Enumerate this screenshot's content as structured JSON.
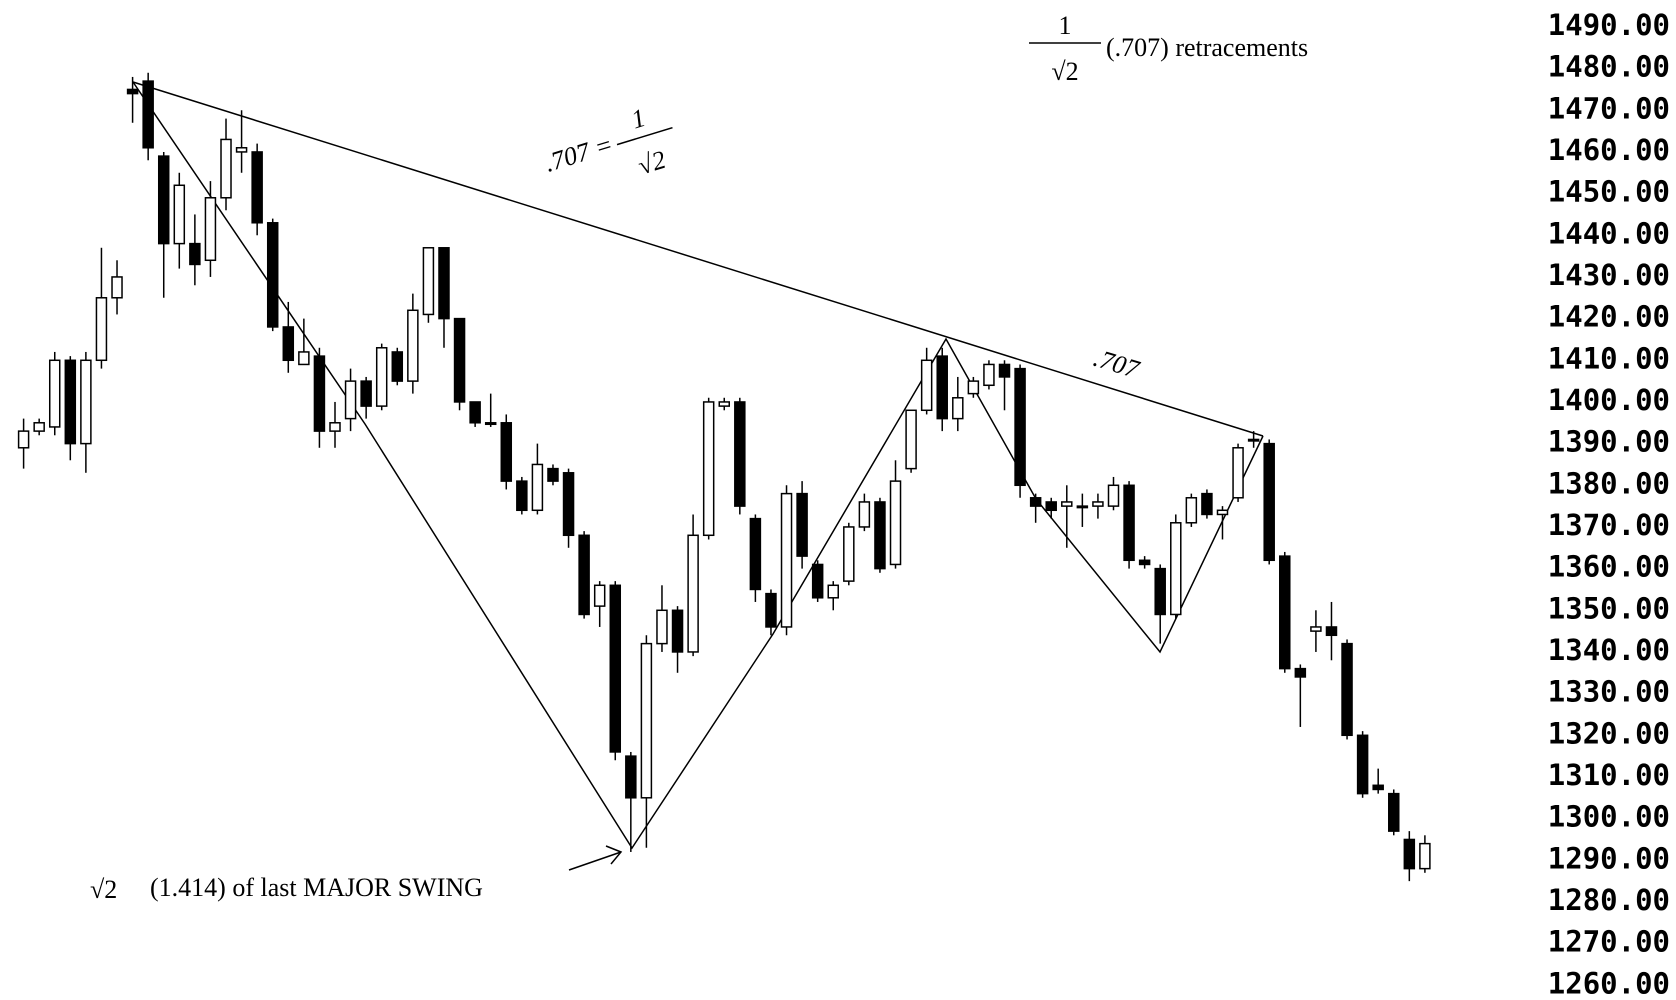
{
  "chart_data": {
    "type": "candlestick",
    "open": [
      1389,
      1393,
      1394,
      1410,
      1390,
      1410,
      1425,
      1475,
      1477,
      1459,
      1438,
      1438,
      1434,
      1449,
      1460,
      1460,
      1443,
      1418,
      1409,
      1411,
      1393,
      1396,
      1405,
      1399,
      1412,
      1405,
      1421,
      1437,
      1420,
      1400,
      1395,
      1395,
      1381,
      1374,
      1384,
      1383,
      1368,
      1351,
      1356,
      1315,
      1305,
      1342,
      1350,
      1340,
      1368,
      1399,
      1400,
      1372,
      1354,
      1346,
      1378,
      1361,
      1353,
      1357,
      1370,
      1376,
      1361,
      1384,
      1398,
      1411,
      1396,
      1402,
      1404,
      1409,
      1408,
      1377,
      1376,
      1375,
      1375,
      1375,
      1375,
      1380,
      1362,
      1360,
      1349,
      1371,
      1378,
      1373,
      1377,
      1391,
      1390,
      1363,
      1336,
      1345,
      1346,
      1342,
      1320,
      1308,
      1306,
      1295,
      1288
    ],
    "high": [
      1396,
      1396,
      1412,
      1411,
      1412,
      1437,
      1434,
      1478,
      1479,
      1460,
      1455,
      1445,
      1453,
      1468,
      1470,
      1462,
      1444,
      1424,
      1420,
      1413,
      1400,
      1408,
      1406,
      1414,
      1413,
      1426,
      1437,
      1437,
      1420,
      1400,
      1402,
      1397,
      1382,
      1390,
      1385,
      1384,
      1369,
      1357,
      1357,
      1316,
      1344,
      1356,
      1351,
      1373,
      1401,
      1401,
      1401,
      1373,
      1355,
      1380,
      1381,
      1362,
      1357,
      1371,
      1378,
      1377,
      1386,
      1398,
      1413,
      1413,
      1406,
      1406,
      1410,
      1410,
      1409,
      1378,
      1377,
      1380,
      1378,
      1378,
      1382,
      1381,
      1363,
      1361,
      1373,
      1378,
      1379,
      1375,
      1390,
      1393,
      1391,
      1364,
      1337,
      1350,
      1352,
      1343,
      1321,
      1312,
      1307,
      1297,
      1296
    ],
    "low": [
      1384,
      1392,
      1392,
      1386,
      1383,
      1408,
      1421,
      1467,
      1458,
      1425,
      1432,
      1428,
      1430,
      1446,
      1455,
      1440,
      1417,
      1407,
      1409,
      1389,
      1389,
      1393,
      1396,
      1398,
      1404,
      1402,
      1419,
      1413,
      1398,
      1394,
      1394,
      1379,
      1373,
      1373,
      1380,
      1365,
      1348,
      1346,
      1314,
      1292,
      1293,
      1340,
      1335,
      1339,
      1367,
      1398,
      1373,
      1352,
      1344,
      1344,
      1360,
      1352,
      1350,
      1356,
      1369,
      1359,
      1360,
      1383,
      1397,
      1393,
      1393,
      1401,
      1403,
      1398,
      1377,
      1371,
      1372,
      1365,
      1370,
      1372,
      1374,
      1360,
      1360,
      1342,
      1348,
      1370,
      1372,
      1367,
      1376,
      1389,
      1361,
      1335,
      1322,
      1340,
      1338,
      1319,
      1305,
      1306,
      1296,
      1285,
      1287
    ],
    "close": [
      1393,
      1395,
      1410,
      1390,
      1410,
      1425,
      1430,
      1474,
      1461,
      1438,
      1452,
      1433,
      1449,
      1463,
      1461,
      1443,
      1418,
      1410,
      1412,
      1393,
      1395,
      1405,
      1399,
      1413,
      1405,
      1422,
      1437,
      1420,
      1400,
      1395,
      1395,
      1381,
      1374,
      1385,
      1381,
      1368,
      1349,
      1356,
      1316,
      1305,
      1342,
      1350,
      1340,
      1368,
      1400,
      1400,
      1375,
      1355,
      1346,
      1378,
      1363,
      1353,
      1356,
      1370,
      1376,
      1360,
      1381,
      1398,
      1410,
      1396,
      1401,
      1405,
      1409,
      1406,
      1380,
      1375,
      1374,
      1376,
      1375,
      1376,
      1380,
      1362,
      1361,
      1349,
      1371,
      1377,
      1373,
      1374,
      1389,
      1391,
      1362,
      1336,
      1334,
      1346,
      1344,
      1320,
      1306,
      1307,
      1297,
      1288,
      1294
    ],
    "up_color": "#ffffff",
    "down_color": "#000000",
    "ylim": [
      1257,
      1492
    ],
    "yticks": [
      {
        "value": 1490,
        "label": "1490.00"
      },
      {
        "value": 1480,
        "label": "1480.00"
      },
      {
        "value": 1470,
        "label": "1470.00"
      },
      {
        "value": 1460,
        "label": "1460.00"
      },
      {
        "value": 1450,
        "label": "1450.00"
      },
      {
        "value": 1440,
        "label": "1440.00"
      },
      {
        "value": 1430,
        "label": "1430.00"
      },
      {
        "value": 1420,
        "label": "1420.00"
      },
      {
        "value": 1410,
        "label": "1410.00"
      },
      {
        "value": 1400,
        "label": "1400.00"
      },
      {
        "value": 1390,
        "label": "1390.00"
      },
      {
        "value": 1380,
        "label": "1380.00"
      },
      {
        "value": 1370,
        "label": "1370.00"
      },
      {
        "value": 1360,
        "label": "1360.00"
      },
      {
        "value": 1350,
        "label": "1350.00"
      },
      {
        "value": 1340,
        "label": "1340.00"
      },
      {
        "value": 1330,
        "label": "1330.00"
      },
      {
        "value": 1320,
        "label": "1320.00"
      },
      {
        "value": 1310,
        "label": "1310.00"
      },
      {
        "value": 1300,
        "label": "1300.00"
      },
      {
        "value": 1290,
        "label": "1290.00"
      },
      {
        "value": 1280,
        "label": "1280.00"
      },
      {
        "value": 1270,
        "label": "1270.00"
      },
      {
        "value": 1260,
        "label": "1260.00"
      }
    ],
    "grid": false,
    "annotations": {
      "retracement_numerator": "1",
      "retracement_denominator": "√2",
      "retracement_text": "(.707) retracements",
      "upper_line_label": ".707 =",
      "upper_line_numerator": "1",
      "upper_line_denominator": "√2",
      "lower_line_label": ".707",
      "swing_symbol": "√2",
      "swing_text": "(1.414) of last MAJOR SWING"
    }
  }
}
